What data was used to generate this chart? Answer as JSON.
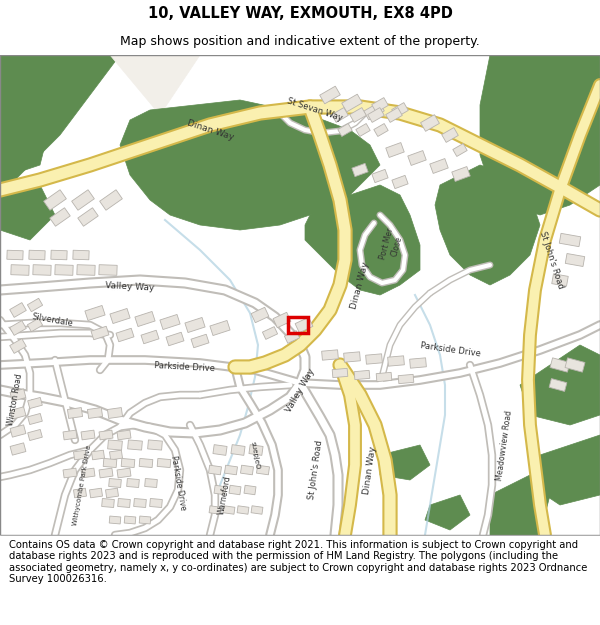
{
  "title_line1": "10, VALLEY WAY, EXMOUTH, EX8 4PD",
  "title_line2": "Map shows position and indicative extent of the property.",
  "footer_text": "Contains OS data © Crown copyright and database right 2021. This information is subject to Crown copyright and database rights 2023 and is reproduced with the permission of HM Land Registry. The polygons (including the associated geometry, namely x, y co-ordinates) are subject to Crown copyright and database rights 2023 Ordnance Survey 100026316.",
  "bg_color": "#ffffff",
  "map_bg": "#f2efe9",
  "road_white": "#ffffff",
  "road_gray_outline": "#c0bdb8",
  "green_color": "#5e8c50",
  "yellow_road_fill": "#faf0b0",
  "yellow_road_outline": "#d4b84a",
  "building_color": "#e8e4de",
  "building_outline": "#b8b4ae",
  "highlight_color": "#dd0000",
  "water_color": "#aed0e0",
  "title_fontsize": 10.5,
  "subtitle_fontsize": 9,
  "footer_fontsize": 7.2,
  "label_color": "#333333"
}
